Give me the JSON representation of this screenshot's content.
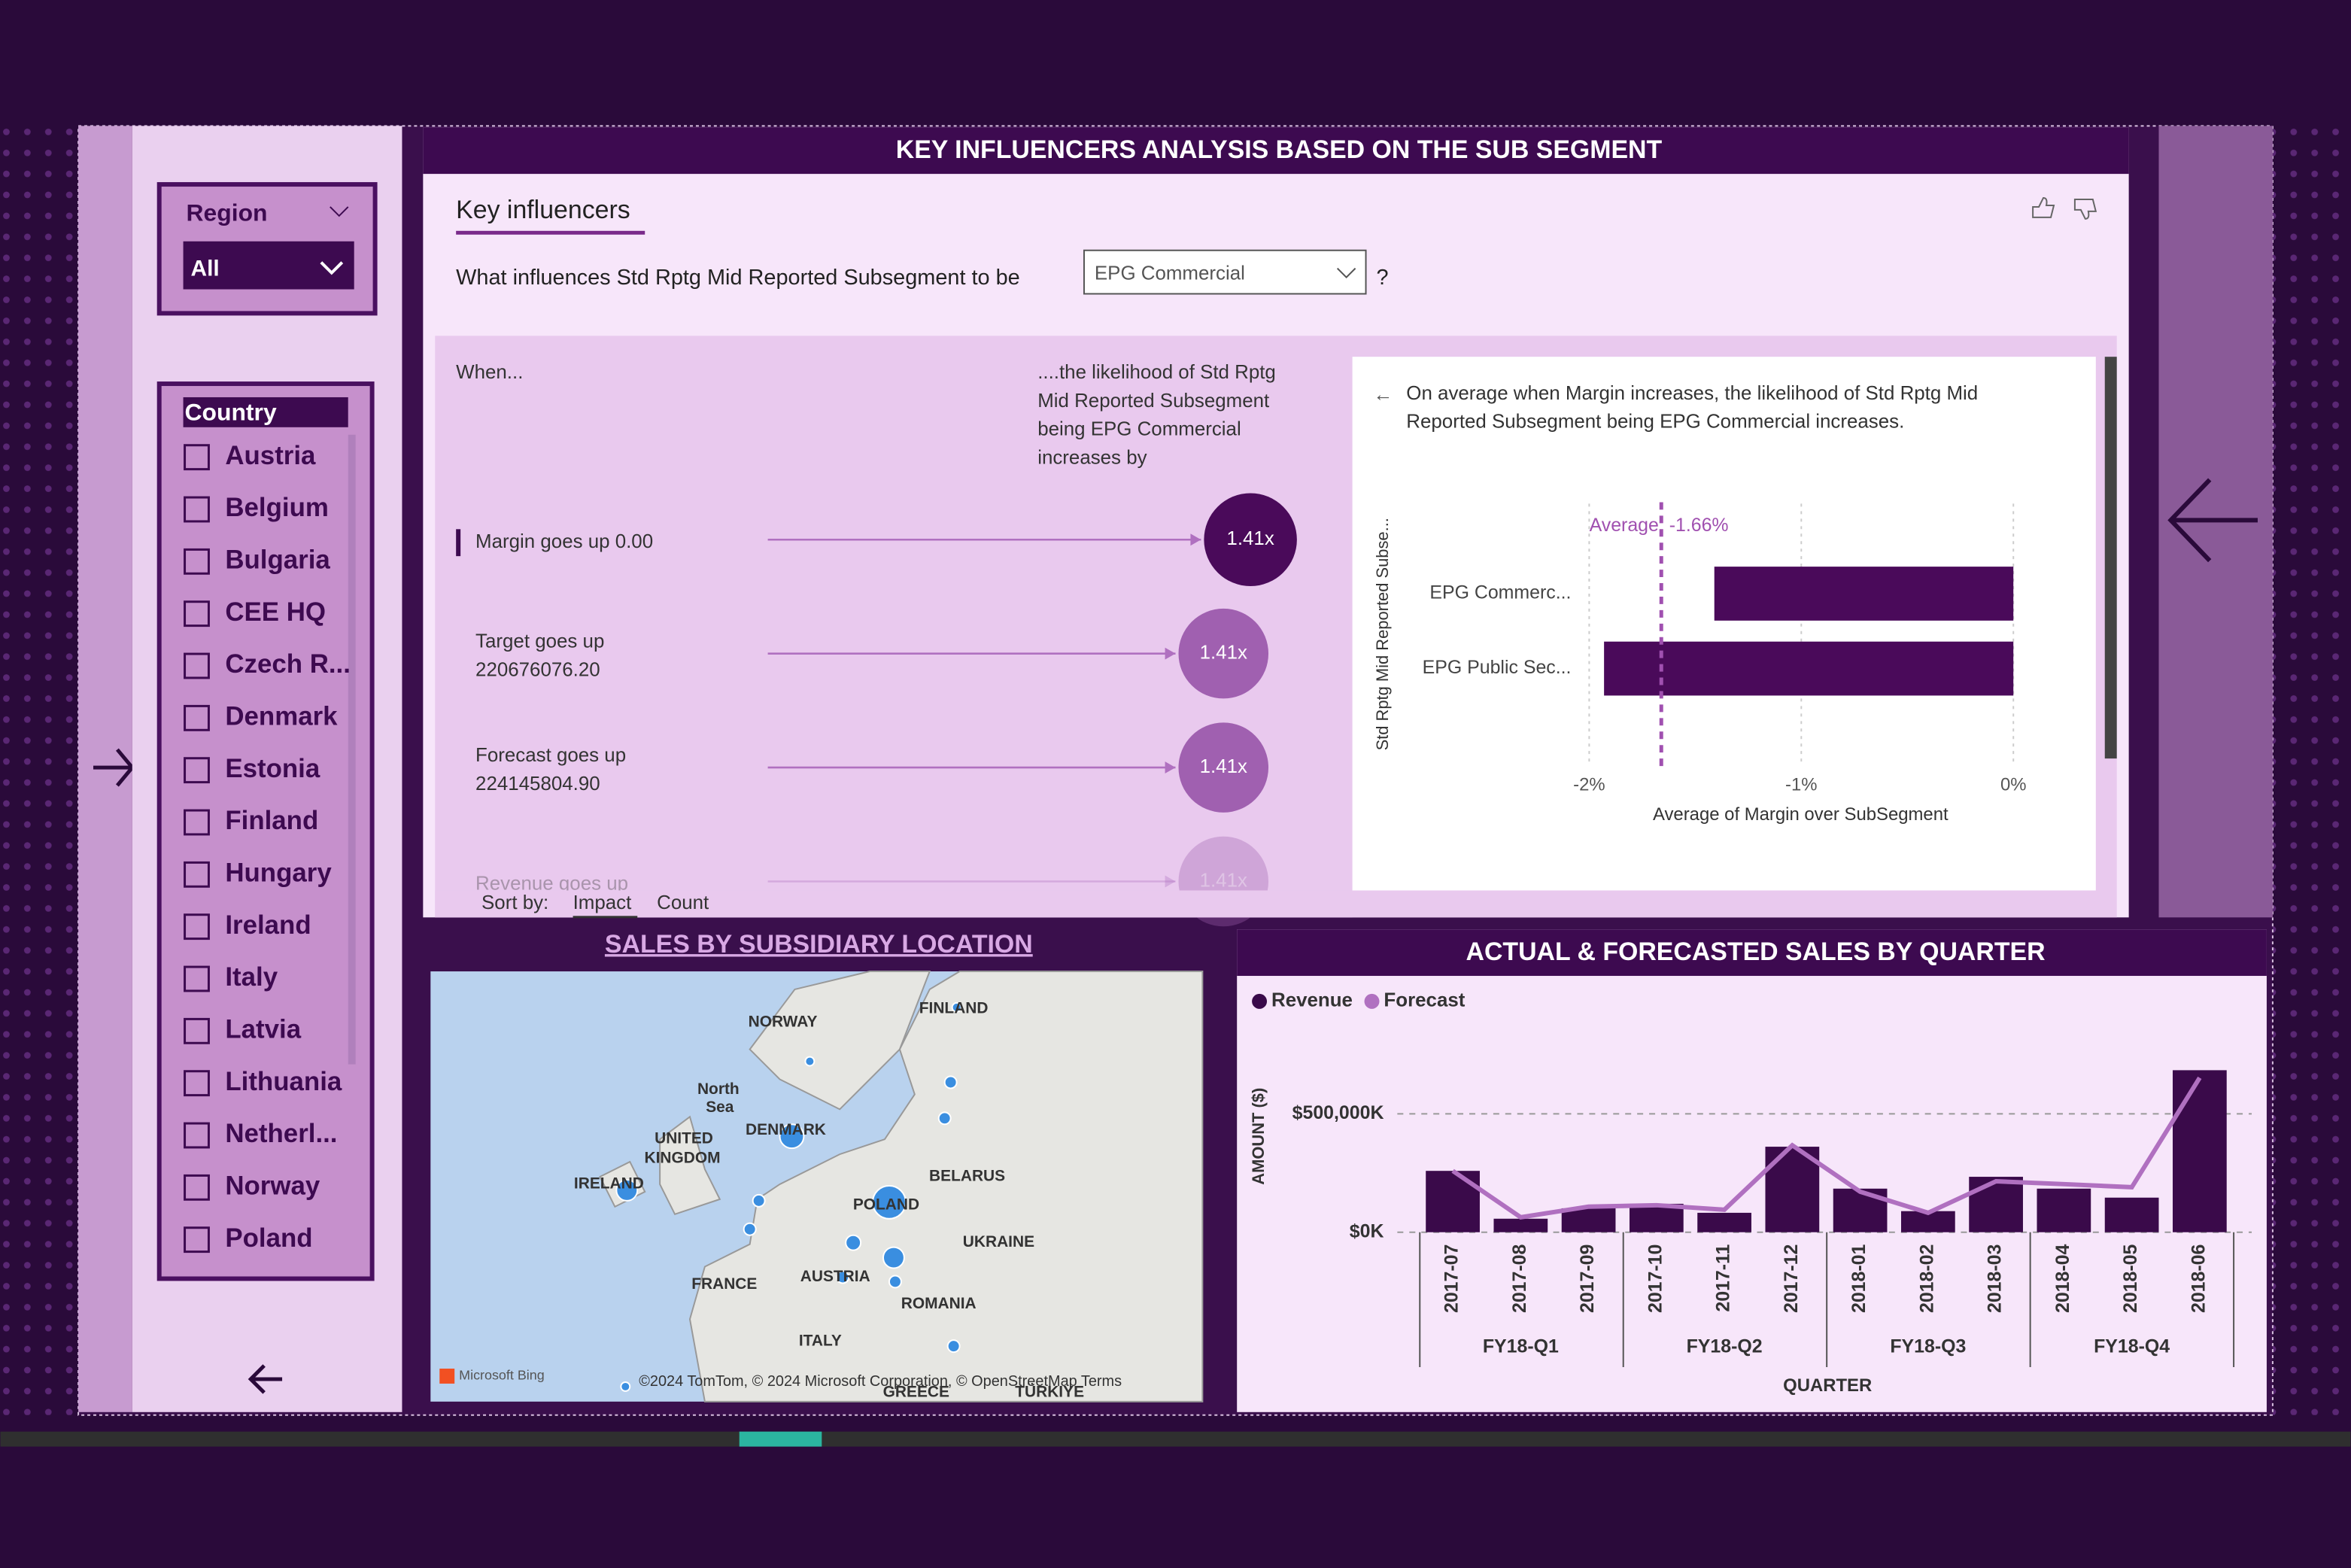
{
  "slicers": {
    "region": {
      "title": "Region",
      "selected": "All"
    },
    "country": {
      "title": "Country",
      "items": [
        "Austria",
        "Belgium",
        "Bulgaria",
        "CEE HQ",
        "Czech R...",
        "Denmark",
        "Estonia",
        "Finland",
        "Hungary",
        "Ireland",
        "Italy",
        "Latvia",
        "Lithuania",
        "Netherl...",
        "Norway",
        "Poland"
      ]
    }
  },
  "key_influencers": {
    "panel_title": "KEY INFLUENCERS ANALYSIS BASED ON THE SUB SEGMENT",
    "visual_title": "Key influencers",
    "question": "What influences Std Rptg Mid Reported Subsegment to be",
    "dropdown": "EPG Commercial",
    "question_mark": "?",
    "when": "When...",
    "likelihood": [
      "....the likelihood of Std Rptg",
      "Mid Reported Subsegment",
      "being EPG Commercial",
      "increases by"
    ],
    "influencers": [
      {
        "label": [
          "Margin goes up 0.00"
        ],
        "value": 1.41,
        "value_label": "1.41x"
      },
      {
        "label": [
          "Target goes up",
          "220676076.20"
        ],
        "value": 1.41,
        "value_label": "1.41x"
      },
      {
        "label": [
          "Forecast goes up",
          "224145804.90"
        ],
        "value": 1.41,
        "value_label": "1.41x"
      },
      {
        "label": [
          "Revenue goes up"
        ],
        "value": 1.41,
        "value_label": "1.41x"
      }
    ],
    "sort_by": "Sort by:",
    "sort_options": [
      "Impact",
      "Count"
    ]
  },
  "detail_chart": {
    "type": "bar",
    "orientation": "horizontal",
    "description": [
      "On average when Margin increases, the likelihood of Std Rptg Mid",
      "Reported Subsegment being EPG Commercial increases."
    ],
    "y_label": "Std Rptg Mid Reported Subse...",
    "x_label": "Average of Margin over SubSegment",
    "categories": [
      "EPG Commerc...",
      "EPG Public Sec..."
    ],
    "values": [
      -1.41,
      -1.93
    ],
    "color": "#4a0a5a",
    "average": {
      "value": -1.66,
      "label": "Average: -1.66%"
    },
    "xlim": [
      -2,
      0
    ],
    "xticks": [
      {
        "value": -2,
        "label": "-2%"
      },
      {
        "value": -1,
        "label": "-1%"
      },
      {
        "value": 0,
        "label": "0%"
      }
    ],
    "grid": true
  },
  "map": {
    "title": "SALES BY SUBSIDIARY LOCATION",
    "labels": [
      "NORWAY",
      "FINLAND",
      "North",
      "Sea",
      "UNITED",
      "KINGDOM",
      "DENMARK",
      "IRELAND",
      "POLAND",
      "BELARUS",
      "UKRAINE",
      "FRANCE",
      "AUSTRIA",
      "ROMANIA",
      "ITALY",
      "GREECE",
      "TÜRKIYE"
    ],
    "logo": "Microsoft Bing",
    "attribution": "©2024 TomTom, © 2024 Microsoft Corporation, © OpenStreetMap  Terms"
  },
  "combo_chart": {
    "type": "bar",
    "title": "ACTUAL & FORECASTED SALES BY QUARTER",
    "y_label": "AMOUNT ($)",
    "x_label": "QUARTER",
    "categories": [
      "2017-07",
      "2017-08",
      "2017-09",
      "2017-10",
      "2017-11",
      "2017-12",
      "2018-01",
      "2018-02",
      "2018-03",
      "2018-04",
      "2018-05",
      "2018-06"
    ],
    "groups": [
      "FY18-Q1",
      "FY18-Q2",
      "FY18-Q3",
      "FY18-Q4"
    ],
    "series": [
      {
        "name": "Revenue",
        "type": "bar",
        "color": "#3a0a4a",
        "values": [
          259000000,
          57000000,
          101000000,
          120000000,
          82000000,
          361000000,
          184000000,
          89000000,
          234000000,
          184000000,
          146000000,
          684000000
        ]
      },
      {
        "name": "Forecast",
        "type": "line",
        "color": "#b070c0",
        "values": [
          259000000,
          63000000,
          108000000,
          114000000,
          95000000,
          367000000,
          171000000,
          82000000,
          215000000,
          203000000,
          190000000,
          652000000
        ]
      }
    ],
    "ylim": [
      0,
      700000000
    ],
    "yticks": [
      {
        "value": 0,
        "label": "$0K"
      },
      {
        "value": 500000000,
        "label": "$500,000K"
      }
    ],
    "grid": true
  }
}
